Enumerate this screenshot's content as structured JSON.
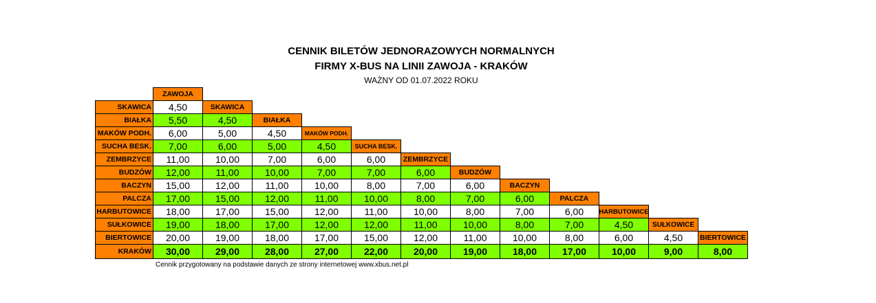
{
  "title": {
    "line1": "CENNIK BILETÓW JEDNORAZOWYCH NORMALNYCH",
    "line2": "FIRMY X-BUS NA LINII ZAWOJA - KRAKÓW",
    "line3": "WAŻNY OD 01.07.2022 ROKU"
  },
  "colors": {
    "header": "#ff8000",
    "stripe": "#80ff00",
    "plain": "#ffffff"
  },
  "columns": [
    "ZAWOJA",
    "SKAWICA",
    "BIAŁKA",
    "MAKÓW PODH.",
    "SUCHA BESK.",
    "ZEMBRZYCE",
    "BUDZÓW",
    "BACZYN",
    "PALCZA",
    "HARBUTOWICE",
    "SUŁKOWICE",
    "BIERTOWICE"
  ],
  "rows": [
    {
      "label": "SKAWICA",
      "prices": [
        "4,50"
      ]
    },
    {
      "label": "BIAŁKA",
      "prices": [
        "5,50",
        "4,50"
      ]
    },
    {
      "label": "MAKÓW PODH.",
      "prices": [
        "6,00",
        "5,00",
        "4,50"
      ]
    },
    {
      "label": "SUCHA BESK.",
      "prices": [
        "7,00",
        "6,00",
        "5,00",
        "4,50"
      ]
    },
    {
      "label": "ZEMBRZYCE",
      "prices": [
        "11,00",
        "10,00",
        "7,00",
        "6,00",
        "6,00"
      ]
    },
    {
      "label": "BUDZÓW",
      "prices": [
        "12,00",
        "11,00",
        "10,00",
        "7,00",
        "7,00",
        "6,00"
      ]
    },
    {
      "label": "BACZYN",
      "prices": [
        "15,00",
        "12,00",
        "11,00",
        "10,00",
        "8,00",
        "7,00",
        "6,00"
      ]
    },
    {
      "label": "PALCZA",
      "prices": [
        "17,00",
        "15,00",
        "12,00",
        "11,00",
        "10,00",
        "8,00",
        "7,00",
        "6,00"
      ]
    },
    {
      "label": "HARBUTOWICE",
      "prices": [
        "18,00",
        "17,00",
        "15,00",
        "12,00",
        "11,00",
        "10,00",
        "8,00",
        "7,00",
        "6,00"
      ]
    },
    {
      "label": "SUŁKOWICE",
      "prices": [
        "19,00",
        "18,00",
        "17,00",
        "12,00",
        "12,00",
        "11,00",
        "10,00",
        "8,00",
        "7,00",
        "4,50"
      ]
    },
    {
      "label": "BIERTOWICE",
      "prices": [
        "20,00",
        "19,00",
        "18,00",
        "17,00",
        "15,00",
        "12,00",
        "11,00",
        "10,00",
        "8,00",
        "6,00",
        "4,50"
      ]
    },
    {
      "label": "KRAKÓW",
      "prices": [
        "30,00",
        "29,00",
        "28,00",
        "27,00",
        "22,00",
        "20,00",
        "19,00",
        "18,00",
        "17,00",
        "10,00",
        "9,00",
        "8,00"
      ]
    }
  ],
  "footnote": "Cennik przygotowany na podstawie danych ze strony internetowej www.xbus.net.pl"
}
